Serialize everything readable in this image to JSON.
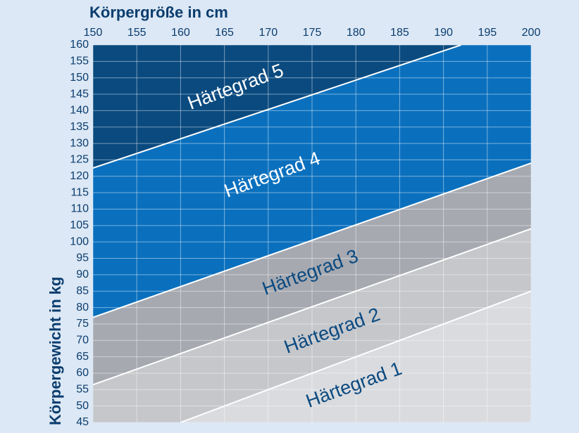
{
  "chart_data": {
    "type": "zones",
    "x_label": "Körpergröße in cm",
    "y_label": "Körpergewicht in kg",
    "xlim": [
      150,
      200
    ],
    "xticks": [
      150,
      155,
      160,
      165,
      170,
      175,
      180,
      185,
      190,
      195,
      200
    ],
    "ylim": [
      45,
      160
    ],
    "yticks": [
      45,
      50,
      55,
      60,
      65,
      70,
      75,
      80,
      85,
      90,
      95,
      100,
      105,
      110,
      115,
      120,
      125,
      130,
      135,
      140,
      145,
      150,
      155,
      160
    ],
    "grid": true,
    "zones": [
      {
        "name": "Härtegrad 1",
        "color": "#dadbde"
      },
      {
        "name": "Härtegrad 2",
        "color": "#c5c7cb"
      },
      {
        "name": "Härtegrad 3",
        "color": "#a6a9b0"
      },
      {
        "name": "Härtegrad 4",
        "color": "#0a70be"
      },
      {
        "name": "Härtegrad 5",
        "color": "#0a4a7f"
      }
    ],
    "boundaries": [
      {
        "x": [
          160,
          200
        ],
        "values": [
          45,
          85
        ]
      },
      {
        "x": [
          150,
          200
        ],
        "values": [
          56.5,
          104
        ]
      },
      {
        "x": [
          150,
          200
        ],
        "values": [
          77,
          124
        ]
      },
      {
        "x": [
          150,
          192
        ],
        "values": [
          122.5,
          160
        ]
      }
    ]
  }
}
